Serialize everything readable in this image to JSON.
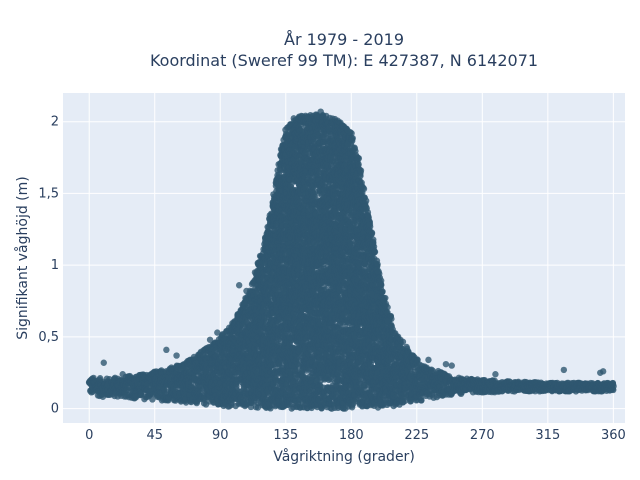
{
  "chart_data": {
    "type": "scatter",
    "title": "År 1979 - 2019",
    "subtitle": "Koordinat (Sweref 99 TM): E 427387, N 6142071",
    "xlabel": "Vågriktning (grader)",
    "ylabel": "Signifikant våghöjd (m)",
    "xlim": [
      -18,
      368
    ],
    "ylim": [
      -0.1,
      2.2
    ],
    "xticks": [
      0,
      45,
      90,
      135,
      180,
      225,
      270,
      315,
      360
    ],
    "xtick_labels": [
      "0",
      "45",
      "90",
      "135",
      "180",
      "225",
      "270",
      "315",
      "360"
    ],
    "yticks": [
      0,
      0.5,
      1,
      1.5,
      2
    ],
    "ytick_labels": [
      "0",
      "0,5",
      "1",
      "1,5",
      "2"
    ],
    "grid": true,
    "background": "#e5ecf6",
    "marker_color": "#2f5870",
    "series": [
      {
        "envelope": {
          "x": [
            0,
            10,
            20,
            30,
            45,
            60,
            75,
            90,
            100,
            110,
            120,
            125,
            130,
            135,
            140,
            150,
            160,
            170,
            175,
            180,
            185,
            190,
            195,
            200,
            205,
            210,
            220,
            230,
            240,
            250,
            270,
            290,
            315,
            340,
            360
          ],
          "y_max": [
            0.22,
            0.21,
            0.22,
            0.23,
            0.26,
            0.3,
            0.38,
            0.5,
            0.62,
            0.82,
            1.15,
            1.4,
            1.72,
            1.96,
            2.03,
            2.05,
            2.05,
            2.02,
            1.98,
            1.92,
            1.75,
            1.45,
            1.18,
            0.92,
            0.72,
            0.55,
            0.4,
            0.3,
            0.26,
            0.22,
            0.2,
            0.19,
            0.18,
            0.18,
            0.18
          ],
          "y_min": [
            0.1,
            0.08,
            0.08,
            0.07,
            0.06,
            0.05,
            0.03,
            0.02,
            0.01,
            0.01,
            0.0,
            0.0,
            0.0,
            0.0,
            0.0,
            0.0,
            0.0,
            0.0,
            0.0,
            0.0,
            0.0,
            0.0,
            0.0,
            0.01,
            0.01,
            0.02,
            0.04,
            0.06,
            0.08,
            0.1,
            0.11,
            0.12,
            0.12,
            0.12,
            0.12
          ]
        },
        "outliers": [
          {
            "x": 10,
            "y": 0.32
          },
          {
            "x": 23,
            "y": 0.24
          },
          {
            "x": 53,
            "y": 0.41
          },
          {
            "x": 60,
            "y": 0.37
          },
          {
            "x": 72,
            "y": 0.36
          },
          {
            "x": 83,
            "y": 0.48
          },
          {
            "x": 88,
            "y": 0.53
          },
          {
            "x": 103,
            "y": 0.86
          },
          {
            "x": 108,
            "y": 0.82
          },
          {
            "x": 194,
            "y": 0.8
          },
          {
            "x": 205,
            "y": 0.61
          },
          {
            "x": 218,
            "y": 0.43
          },
          {
            "x": 233,
            "y": 0.34
          },
          {
            "x": 245,
            "y": 0.31
          },
          {
            "x": 249,
            "y": 0.3
          },
          {
            "x": 279,
            "y": 0.24
          },
          {
            "x": 326,
            "y": 0.27
          },
          {
            "x": 351,
            "y": 0.25
          },
          {
            "x": 353,
            "y": 0.26
          },
          {
            "x": 159,
            "y": 2.07
          }
        ]
      }
    ]
  }
}
